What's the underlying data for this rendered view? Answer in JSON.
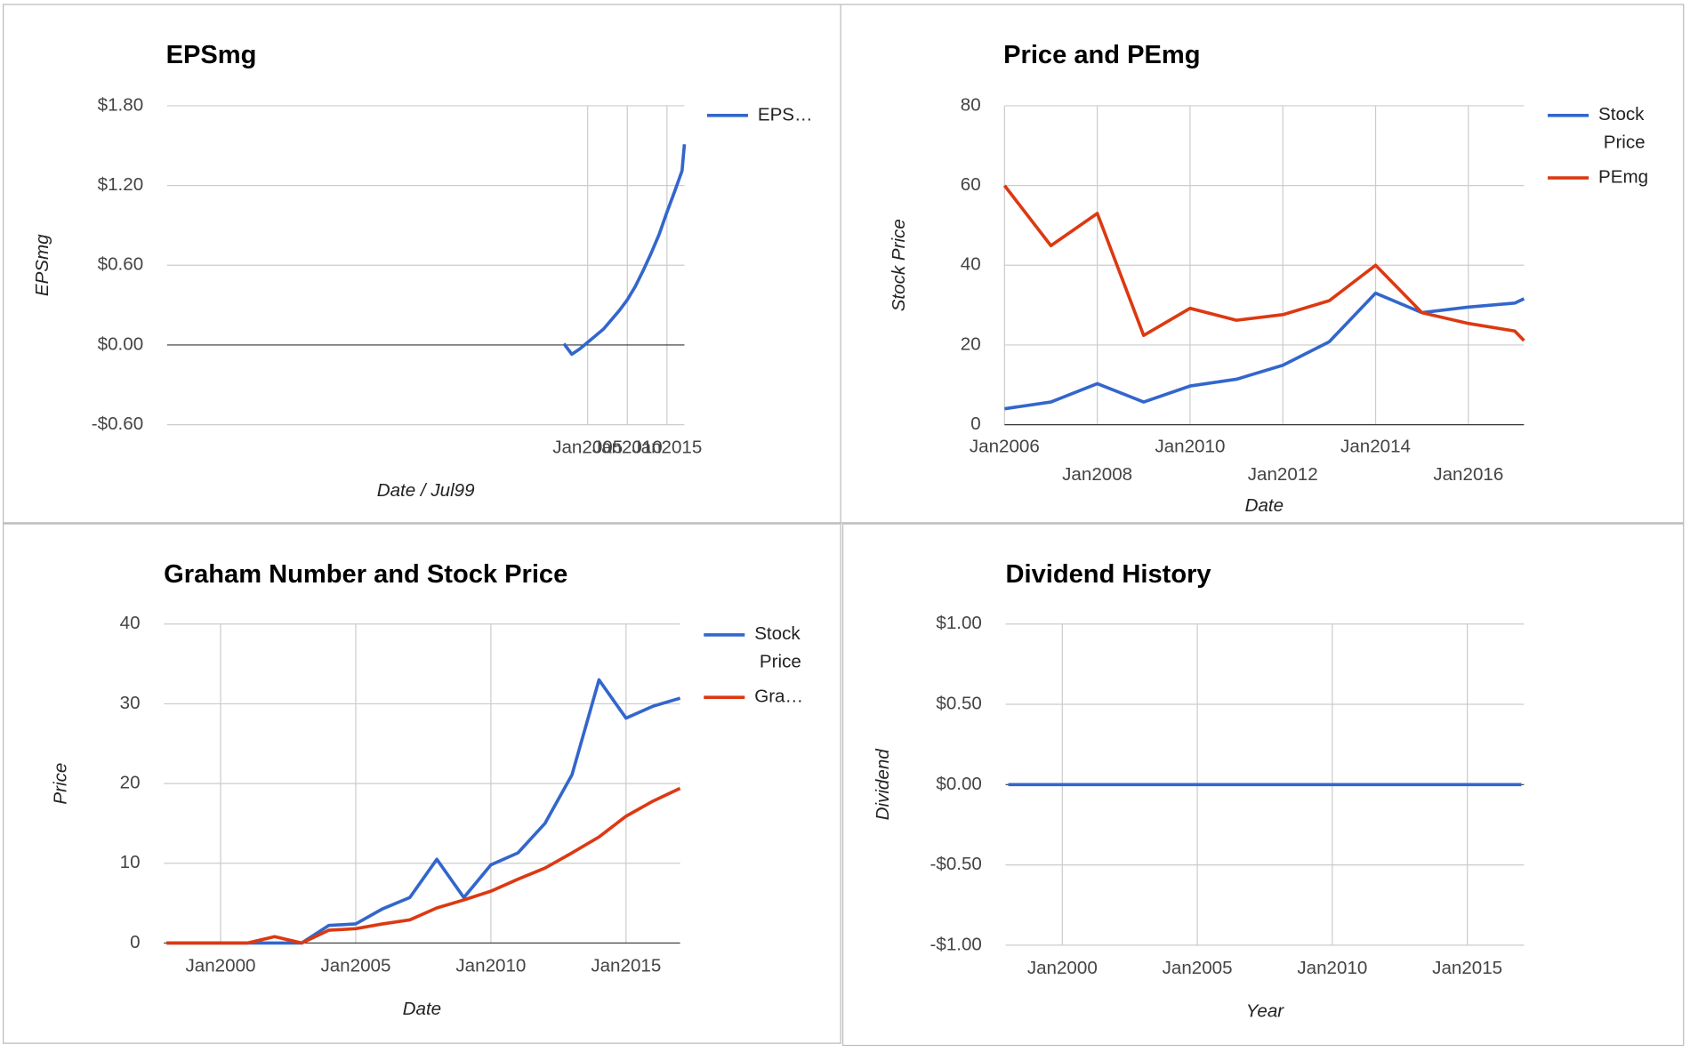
{
  "chart_data": [
    {
      "type": "line",
      "title": "EPSmg",
      "xlabel": "Date / Jul99",
      "ylabel": "EPSmg",
      "x": [
        2002,
        2003,
        2004,
        2005,
        2006,
        2007,
        2008,
        2009,
        2010,
        2011,
        2012,
        2013,
        2014,
        2015,
        2016,
        2016.9,
        2017.2
      ],
      "series": [
        {
          "name": "EPS…",
          "color": "#3366cc",
          "values": [
            0.01,
            -0.07,
            -0.03,
            0.02,
            0.07,
            0.12,
            0.19,
            0.26,
            0.34,
            0.44,
            0.56,
            0.69,
            0.83,
            1.0,
            1.16,
            1.31,
            1.51
          ]
        }
      ],
      "xlim": [
        1951.95,
        2017.2
      ],
      "ylim": [
        -0.6,
        1.8
      ],
      "xticks": [
        {
          "value": 2005,
          "label": "Jan2005"
        },
        {
          "value": 2010,
          "label": "Jan2010"
        },
        {
          "value": 2015,
          "label": "Jan2015"
        }
      ],
      "yticks": [
        {
          "value": -0.6,
          "label": "-$0.60"
        },
        {
          "value": 0,
          "label": "$0.00"
        },
        {
          "value": 0.6,
          "label": "$0.60"
        },
        {
          "value": 1.2,
          "label": "$1.20"
        },
        {
          "value": 1.8,
          "label": "$1.80"
        }
      ],
      "grid": true,
      "legend": "right"
    },
    {
      "type": "line",
      "title": "Price and PEmg",
      "xlabel": "Date",
      "ylabel": "Stock Price",
      "x": [
        2006,
        2007,
        2008,
        2009,
        2010,
        2011,
        2012,
        2013,
        2014,
        2015,
        2016,
        2017,
        2017.2
      ],
      "series": [
        {
          "name": "Stock Price",
          "color": "#3366cc",
          "values": [
            4,
            5.7,
            10.3,
            5.7,
            9.7,
            11.4,
            14.9,
            20.8,
            33,
            28.1,
            29.5,
            30.5,
            31.6
          ]
        },
        {
          "name": "PEmg",
          "color": "#dc3912",
          "values": [
            60,
            44.9,
            53,
            22.4,
            29.2,
            26.2,
            27.6,
            31.1,
            40,
            28.1,
            25.4,
            23.5,
            21.1
          ]
        }
      ],
      "xlim": [
        2006,
        2017.2
      ],
      "ylim": [
        0,
        80
      ],
      "xticks": [
        {
          "value": 2006,
          "label": "Jan2006"
        },
        {
          "value": 2008,
          "label": "Jan2008"
        },
        {
          "value": 2010,
          "label": "Jan2010"
        },
        {
          "value": 2012,
          "label": "Jan2012"
        },
        {
          "value": 2014,
          "label": "Jan2014"
        },
        {
          "value": 2016,
          "label": "Jan2016"
        }
      ],
      "yticks": [
        0,
        20,
        40,
        60,
        80
      ],
      "grid": true,
      "legend": "right"
    },
    {
      "type": "line",
      "title": "Graham Number and Stock Price",
      "xlabel": "Date",
      "ylabel": "Price",
      "x": [
        1998,
        1999,
        2000,
        2001,
        2002,
        2003,
        2004,
        2005,
        2006,
        2007,
        2008,
        2009,
        2010,
        2011,
        2012,
        2013,
        2014,
        2015,
        2016,
        2017
      ],
      "series": [
        {
          "name": "Stock Price",
          "color": "#3366cc",
          "values": [
            0,
            0,
            0,
            0,
            0,
            0,
            2.2,
            2.4,
            4.3,
            5.7,
            10.5,
            5.7,
            9.8,
            11.3,
            15,
            21.1,
            33,
            28.2,
            29.7,
            30.7
          ]
        },
        {
          "name": "Gra…",
          "color": "#dc3912",
          "values": [
            0,
            0,
            0,
            0,
            0.8,
            0,
            1.6,
            1.8,
            2.4,
            2.9,
            4.4,
            5.4,
            6.5,
            8,
            9.4,
            11.3,
            13.3,
            15.9,
            17.8,
            19.4
          ]
        }
      ],
      "xlim": [
        1997.9,
        2017
      ],
      "ylim": [
        0,
        40
      ],
      "xticks": [
        {
          "value": 2000,
          "label": "Jan2000"
        },
        {
          "value": 2005,
          "label": "Jan2005"
        },
        {
          "value": 2010,
          "label": "Jan2010"
        },
        {
          "value": 2015,
          "label": "Jan2015"
        }
      ],
      "yticks": [
        0,
        10,
        20,
        30,
        40
      ],
      "grid": true,
      "legend": "right"
    },
    {
      "type": "line",
      "title": "Dividend History",
      "xlabel": "Year",
      "ylabel": "Dividend",
      "x": [
        1998,
        1999,
        2000,
        2001,
        2002,
        2003,
        2004,
        2005,
        2006,
        2007,
        2008,
        2009,
        2010,
        2011,
        2012,
        2013,
        2014,
        2015,
        2016,
        2017
      ],
      "series": [
        {
          "color": "#3366cc",
          "values": [
            0,
            0,
            0,
            0,
            0,
            0,
            0,
            0,
            0,
            0,
            0,
            0,
            0,
            0,
            0,
            0,
            0,
            0,
            0,
            0
          ]
        }
      ],
      "xlim": [
        1997.9,
        2017.1
      ],
      "ylim": [
        -1,
        1
      ],
      "xticks": [
        {
          "value": 2000,
          "label": "Jan2000"
        },
        {
          "value": 2005,
          "label": "Jan2005"
        },
        {
          "value": 2010,
          "label": "Jan2010"
        },
        {
          "value": 2015,
          "label": "Jan2015"
        }
      ],
      "yticks": [
        {
          "value": -1,
          "label": "-$1.00"
        },
        {
          "value": -0.5,
          "label": "-$0.50"
        },
        {
          "value": 0,
          "label": "$0.00"
        },
        {
          "value": 0.5,
          "label": "$0.50"
        },
        {
          "value": 1,
          "label": "$1.00"
        }
      ],
      "grid": true
    }
  ]
}
